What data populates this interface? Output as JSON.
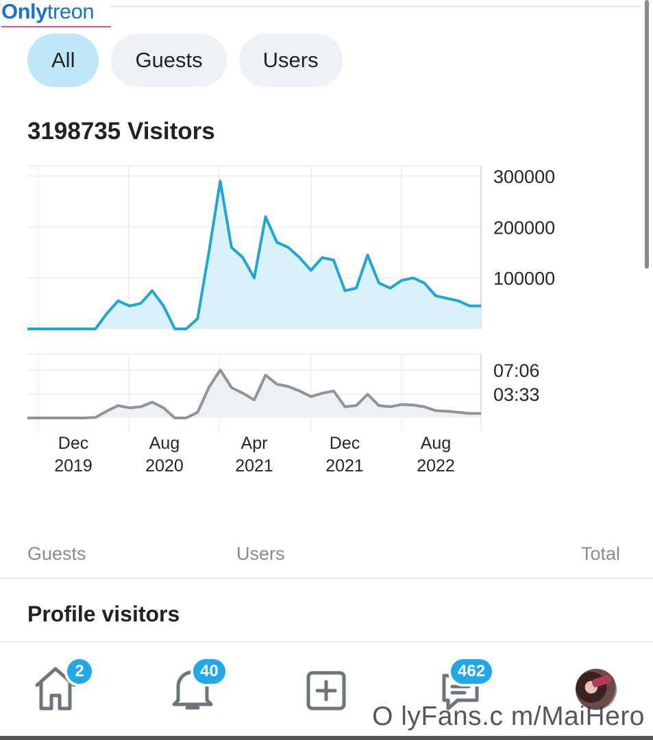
{
  "watermark": {
    "brand_part1": "Only",
    "brand_part2": "treon",
    "bottom_text": "O lyFans.c m/MaiHero"
  },
  "tabs": [
    {
      "label": "All",
      "active": true
    },
    {
      "label": "Guests",
      "active": false
    },
    {
      "label": "Users",
      "active": false
    }
  ],
  "headline": "3198735 Visitors",
  "legend": {
    "guests": "Guests",
    "users": "Users",
    "total": "Total"
  },
  "section_title": "Profile visitors",
  "navbar": {
    "home_badge": "2",
    "notifications_badge": "40",
    "messages_badge": "462",
    "icons": [
      "home-icon",
      "bell-icon",
      "add-post-icon",
      "message-icon",
      "avatar"
    ]
  },
  "colors": {
    "accent": "#20a8e8",
    "visitors_line": "#1ea7d6",
    "visitors_fill": "#d8f1fa",
    "duration_line": "#8e9497",
    "duration_fill": "#eef0f1"
  },
  "chart_data": [
    {
      "type": "area",
      "name": "visitors",
      "x_tick_labels": [
        [
          "Dec",
          "2019"
        ],
        [
          "Aug",
          "2020"
        ],
        [
          "Apr",
          "2021"
        ],
        [
          "Dec",
          "2021"
        ],
        [
          "Aug",
          "2022"
        ]
      ],
      "y_tick_labels": [
        "300000",
        "200000",
        "100000"
      ],
      "ylim": [
        0,
        320000
      ],
      "grid": true,
      "values": [
        0,
        0,
        0,
        0,
        0,
        0,
        0,
        30000,
        55000,
        45000,
        50000,
        75000,
        45000,
        0,
        0,
        20000,
        150000,
        290000,
        160000,
        140000,
        100000,
        220000,
        170000,
        160000,
        140000,
        115000,
        140000,
        135000,
        75000,
        80000,
        145000,
        90000,
        80000,
        95000,
        100000,
        90000,
        65000,
        60000,
        55000,
        45000,
        45000
      ]
    },
    {
      "type": "area",
      "name": "visit-duration",
      "y_tick_labels": [
        "07:06",
        "03:33"
      ],
      "ylim_seconds": [
        0,
        566
      ],
      "grid": true,
      "values_seconds": [
        0,
        0,
        0,
        0,
        0,
        0,
        5,
        60,
        110,
        90,
        100,
        140,
        90,
        0,
        0,
        50,
        270,
        426,
        270,
        220,
        160,
        380,
        300,
        280,
        240,
        190,
        220,
        240,
        100,
        110,
        210,
        110,
        100,
        120,
        115,
        100,
        65,
        60,
        50,
        40,
        40
      ]
    }
  ]
}
